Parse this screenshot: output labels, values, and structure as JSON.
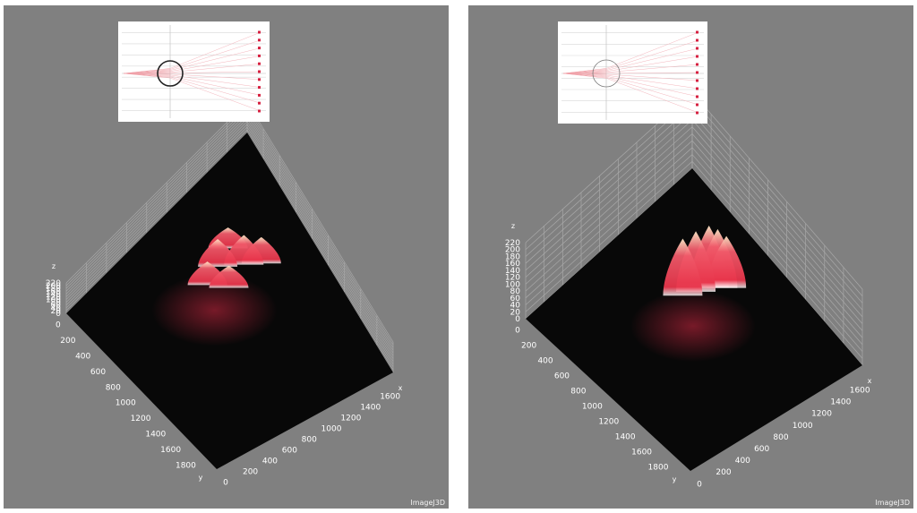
{
  "watermark": "ImageJ3D",
  "chart_data": [
    {
      "type": "surface3d",
      "panel": "left",
      "axes": {
        "x": "x",
        "y": "y",
        "z": "z"
      },
      "z_ticks": [
        "0",
        "20",
        "40",
        "60",
        "80",
        "100",
        "120",
        "140",
        "160",
        "180",
        "200",
        "220"
      ],
      "y_ticks": [
        "0",
        "200",
        "400",
        "600",
        "800",
        "1000",
        "1200",
        "1400",
        "1600",
        "1800"
      ],
      "x_ticks": [
        "0",
        "200",
        "400",
        "600",
        "800",
        "1000",
        "1200",
        "1400",
        "1600"
      ],
      "zlim": [
        0,
        220
      ],
      "peaks": [
        {
          "x": 800,
          "y": 700,
          "z": 215
        },
        {
          "x": 650,
          "y": 850,
          "z": 200
        },
        {
          "x": 900,
          "y": 600,
          "z": 190
        },
        {
          "x": 700,
          "y": 1000,
          "z": 170
        },
        {
          "x": 850,
          "y": 900,
          "z": 160
        },
        {
          "x": 600,
          "y": 700,
          "z": 150
        }
      ],
      "colors": {
        "background": "#808080",
        "floor": "#080808",
        "peak": "#e8354b",
        "tip": "#ffe9c8"
      },
      "inset": {
        "type": "ray-diagram",
        "circle": "thick"
      }
    },
    {
      "type": "surface3d",
      "panel": "right",
      "axes": {
        "x": "x",
        "y": "y",
        "z": "z"
      },
      "z_ticks": [
        "0",
        "20",
        "40",
        "60",
        "80",
        "100",
        "120",
        "140",
        "160",
        "180",
        "200",
        "220"
      ],
      "y_ticks": [
        "0",
        "200",
        "400",
        "600",
        "800",
        "1000",
        "1200",
        "1400",
        "1600",
        "1800"
      ],
      "x_ticks": [
        "0",
        "200",
        "400",
        "600",
        "800",
        "1000",
        "1200",
        "1400",
        "1600"
      ],
      "zlim": [
        0,
        220
      ],
      "peaks": [
        {
          "x": 850,
          "y": 650,
          "z": 180
        },
        {
          "x": 800,
          "y": 750,
          "z": 175
        },
        {
          "x": 900,
          "y": 600,
          "z": 170
        },
        {
          "x": 750,
          "y": 850,
          "z": 165
        },
        {
          "x": 950,
          "y": 550,
          "z": 150
        }
      ],
      "colors": {
        "background": "#808080",
        "floor": "#080808",
        "peak": "#e8354b",
        "tip": "#ffe9c8"
      },
      "inset": {
        "type": "ray-diagram",
        "circle": "thin"
      }
    }
  ]
}
